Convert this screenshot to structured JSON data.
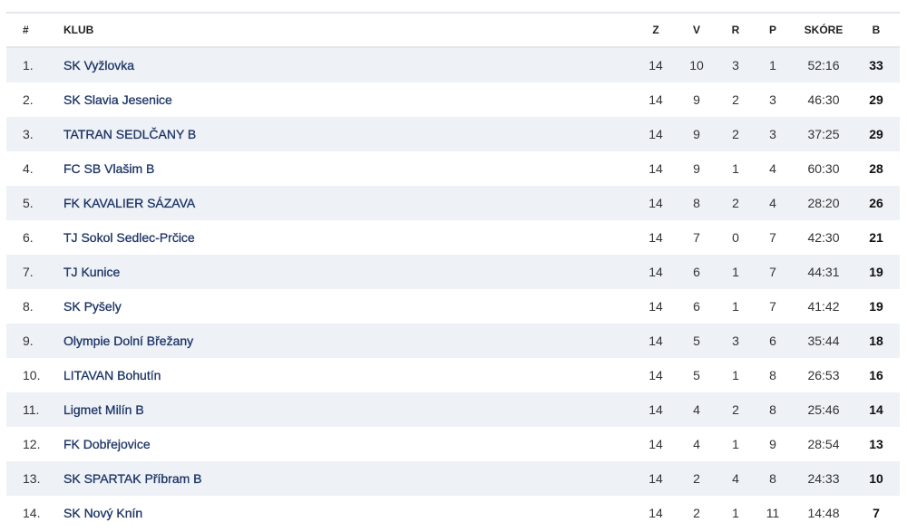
{
  "headers": {
    "pos": "#",
    "club": "KLUB",
    "z": "Z",
    "v": "V",
    "r": "R",
    "p": "P",
    "score": "SKÓRE",
    "points": "B"
  },
  "rows": [
    {
      "pos": "1.",
      "club": "SK Vyžlovka",
      "z": "14",
      "v": "10",
      "r": "3",
      "p": "1",
      "score": "52:16",
      "points": "33"
    },
    {
      "pos": "2.",
      "club": "SK Slavia Jesenice",
      "z": "14",
      "v": "9",
      "r": "2",
      "p": "3",
      "score": "46:30",
      "points": "29"
    },
    {
      "pos": "3.",
      "club": "TATRAN SEDLČANY B",
      "z": "14",
      "v": "9",
      "r": "2",
      "p": "3",
      "score": "37:25",
      "points": "29"
    },
    {
      "pos": "4.",
      "club": "FC SB Vlašim B",
      "z": "14",
      "v": "9",
      "r": "1",
      "p": "4",
      "score": "60:30",
      "points": "28"
    },
    {
      "pos": "5.",
      "club": "FK KAVALIER SÁZAVA",
      "z": "14",
      "v": "8",
      "r": "2",
      "p": "4",
      "score": "28:20",
      "points": "26"
    },
    {
      "pos": "6.",
      "club": "TJ Sokol Sedlec-Prčice",
      "z": "14",
      "v": "7",
      "r": "0",
      "p": "7",
      "score": "42:30",
      "points": "21"
    },
    {
      "pos": "7.",
      "club": "TJ Kunice",
      "z": "14",
      "v": "6",
      "r": "1",
      "p": "7",
      "score": "44:31",
      "points": "19"
    },
    {
      "pos": "8.",
      "club": "SK Pyšely",
      "z": "14",
      "v": "6",
      "r": "1",
      "p": "7",
      "score": "41:42",
      "points": "19"
    },
    {
      "pos": "9.",
      "club": "Olympie Dolní Břežany",
      "z": "14",
      "v": "5",
      "r": "3",
      "p": "6",
      "score": "35:44",
      "points": "18"
    },
    {
      "pos": "10.",
      "club": "LITAVAN Bohutín",
      "z": "14",
      "v": "5",
      "r": "1",
      "p": "8",
      "score": "26:53",
      "points": "16"
    },
    {
      "pos": "11.",
      "club": "Ligmet Milín B",
      "z": "14",
      "v": "4",
      "r": "2",
      "p": "8",
      "score": "25:46",
      "points": "14"
    },
    {
      "pos": "12.",
      "club": "FK Dobřejovice",
      "z": "14",
      "v": "4",
      "r": "1",
      "p": "9",
      "score": "28:54",
      "points": "13"
    },
    {
      "pos": "13.",
      "club": "SK SPARTAK Příbram B",
      "z": "14",
      "v": "2",
      "r": "4",
      "p": "8",
      "score": "24:33",
      "points": "10"
    },
    {
      "pos": "14.",
      "club": "SK Nový Knín",
      "z": "14",
      "v": "2",
      "r": "1",
      "p": "11",
      "score": "14:48",
      "points": "7"
    }
  ]
}
